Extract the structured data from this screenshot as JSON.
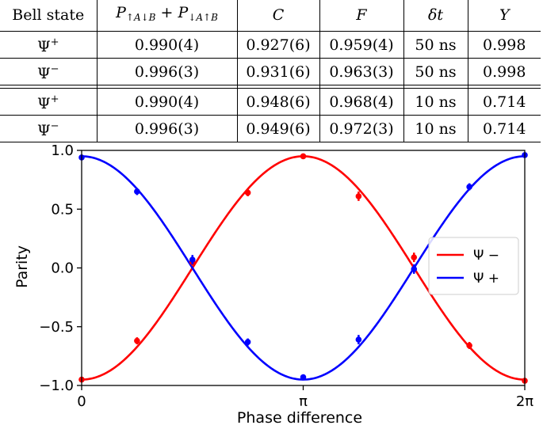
{
  "table": {
    "headers": {
      "state": "Bell state",
      "prob_main": "P",
      "prob_sub1": "↑A↓B",
      "prob_plus": " + P",
      "prob_sub2": "↓A↑B",
      "c": "C",
      "f": "F",
      "dt": "δt",
      "y": "Y"
    },
    "rows": [
      {
        "state": "Ψ",
        "sign": "+",
        "p": "0.990(4)",
        "c": "0.927(6)",
        "f": "0.959(4)",
        "dt": "50 ns",
        "y": "0.998"
      },
      {
        "state": "Ψ",
        "sign": "−",
        "p": "0.996(3)",
        "c": "0.931(6)",
        "f": "0.963(3)",
        "dt": "50 ns",
        "y": "0.998"
      },
      {
        "state": "Ψ",
        "sign": "+",
        "p": "0.990(4)",
        "c": "0.948(6)",
        "f": "0.968(4)",
        "dt": "10 ns",
        "y": "0.714"
      },
      {
        "state": "Ψ",
        "sign": "−",
        "p": "0.996(3)",
        "c": "0.949(6)",
        "f": "0.972(3)",
        "dt": "10 ns",
        "y": "0.714"
      }
    ]
  },
  "chart_data": {
    "type": "line",
    "xlabel": "Phase difference",
    "ylabel": "Parity",
    "xlim": [
      0,
      6.2832
    ],
    "ylim": [
      -1.0,
      1.0
    ],
    "xticks": [
      0,
      3.1416,
      6.2832
    ],
    "xtick_labels": [
      "0",
      "π",
      "2π"
    ],
    "yticks": [
      -1.0,
      -0.5,
      0.0,
      0.5,
      1.0
    ],
    "ytick_labels": [
      "−1.0",
      "−0.5",
      "0.0",
      "0.5",
      "1.0"
    ],
    "legend_position": "center-right",
    "series": [
      {
        "name": "Ψ −",
        "color": "#ff0000",
        "fit_amplitude": 0.95,
        "fit_form": "-A*cos(x)",
        "x": [
          0,
          0.7854,
          1.5708,
          2.3562,
          3.1416,
          3.927,
          4.7124,
          5.4978,
          6.2832
        ],
        "y": [
          -0.95,
          -0.62,
          0.05,
          0.64,
          0.95,
          0.61,
          0.09,
          -0.66,
          -0.96
        ],
        "err": [
          0.01,
          0.03,
          0.03,
          0.03,
          0.01,
          0.04,
          0.04,
          0.03,
          0.01
        ]
      },
      {
        "name": "Ψ +",
        "color": "#0000ff",
        "fit_amplitude": 0.95,
        "fit_form": "A*cos(x)",
        "x": [
          0,
          0.7854,
          1.5708,
          2.3562,
          3.1416,
          3.927,
          4.7124,
          5.4978,
          6.2832
        ],
        "y": [
          0.94,
          0.65,
          0.07,
          -0.63,
          -0.93,
          -0.61,
          -0.01,
          0.69,
          0.96
        ],
        "err": [
          0.01,
          0.03,
          0.04,
          0.03,
          0.01,
          0.04,
          0.04,
          0.03,
          0.01
        ]
      }
    ]
  }
}
